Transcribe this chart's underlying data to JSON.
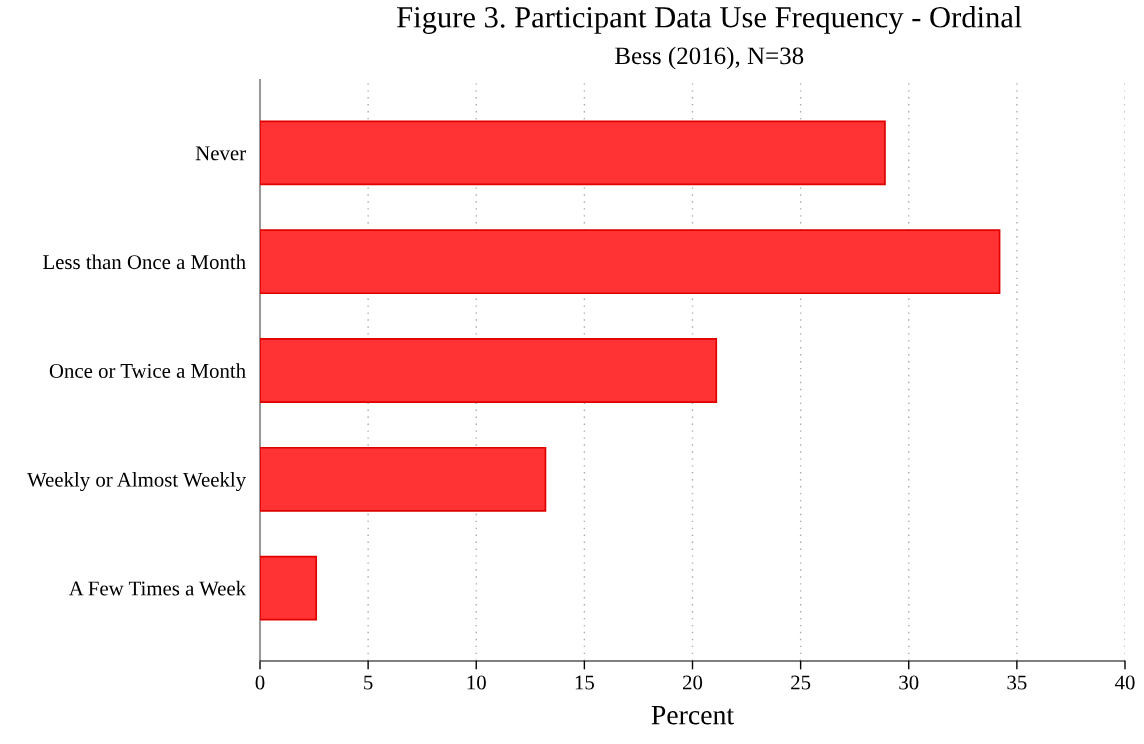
{
  "chart_data": {
    "type": "bar",
    "orientation": "horizontal",
    "title": "Figure 3. Participant Data Use Frequency - Ordinal",
    "subtitle": "Bess (2016), N=38",
    "xlabel": "Percent",
    "categories": [
      "Never",
      "Less than Once a Month",
      "Once or Twice a Month",
      "Weekly or Almost Weekly",
      "A Few Times a Week"
    ],
    "values": [
      28.9,
      34.2,
      21.1,
      13.2,
      2.6
    ],
    "color": "#ff3333",
    "xlim": [
      0,
      40
    ],
    "xticks": [
      0,
      5,
      10,
      15,
      20,
      25,
      30,
      35,
      40
    ],
    "grid": "x"
  }
}
